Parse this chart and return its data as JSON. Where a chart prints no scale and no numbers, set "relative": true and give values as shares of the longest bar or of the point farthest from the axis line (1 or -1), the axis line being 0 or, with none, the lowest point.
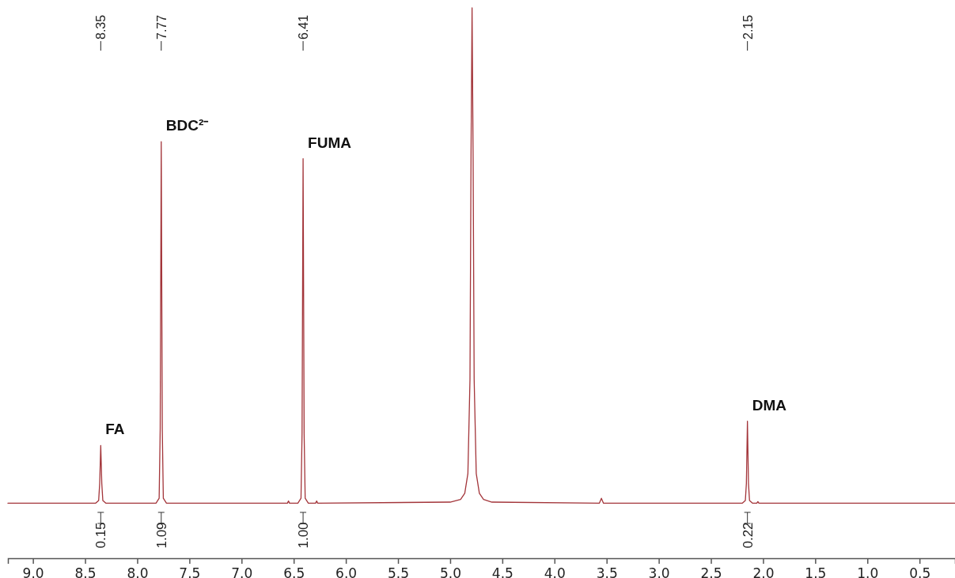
{
  "chart_data": {
    "type": "line",
    "relative": true,
    "xlim": [
      9.24,
      0.16
    ],
    "xticks": [
      {
        "value": 9,
        "label": "9.0"
      },
      {
        "value": 8.5,
        "label": "8.5"
      },
      {
        "value": 8,
        "label": "8.0"
      },
      {
        "value": 7.5,
        "label": "7.5"
      },
      {
        "value": 7,
        "label": "7.0"
      },
      {
        "value": 6.5,
        "label": "6.5"
      },
      {
        "value": 6,
        "label": "6.0"
      },
      {
        "value": 5.5,
        "label": "5.5"
      },
      {
        "value": 5,
        "label": "5.0"
      },
      {
        "value": 4.5,
        "label": "4.5"
      },
      {
        "value": 4,
        "label": "4.0"
      },
      {
        "value": 3.5,
        "label": "3.5"
      },
      {
        "value": 3,
        "label": "3.0"
      },
      {
        "value": 2.5,
        "label": "2.5"
      },
      {
        "value": 2,
        "label": "2.0"
      },
      {
        "value": 1.5,
        "label": "1.5"
      },
      {
        "value": 1,
        "label": "1.0"
      },
      {
        "value": 0.5,
        "label": "0.5"
      }
    ],
    "series": [
      {
        "color": "#a3353a",
        "x": [
          9.24,
          8.4,
          8.37,
          8.36,
          8.35,
          8.34,
          8.33,
          8.3,
          7.82,
          7.79,
          7.78,
          7.77,
          7.76,
          7.75,
          7.72,
          6.56,
          6.55,
          6.54,
          6.46,
          6.43,
          6.42,
          6.41,
          6.4,
          6.39,
          6.36,
          6.29,
          6.28,
          6.27,
          5.0,
          4.9,
          4.86,
          4.83,
          4.81,
          4.8,
          4.79,
          4.78,
          4.77,
          4.75,
          4.72,
          4.68,
          4.6,
          3.57,
          3.55,
          3.53,
          2.2,
          2.17,
          2.16,
          2.15,
          2.14,
          2.13,
          2.1,
          2.06,
          2.05,
          2.04,
          0.16
        ],
        "values": [
          0.1,
          0.1,
          0.105,
          0.136,
          0.205,
          0.136,
          0.105,
          0.1,
          0.1,
          0.109,
          0.235,
          0.757,
          0.235,
          0.109,
          0.1,
          0.1,
          0.104,
          0.1,
          0.1,
          0.109,
          0.226,
          0.726,
          0.226,
          0.109,
          0.1,
          0.1,
          0.104,
          0.1,
          0.102,
          0.107,
          0.118,
          0.154,
          0.325,
          0.73,
          1,
          0.73,
          0.325,
          0.154,
          0.118,
          0.107,
          0.102,
          0.1,
          0.109,
          0.1,
          0.1,
          0.105,
          0.136,
          0.249,
          0.136,
          0.105,
          0.1,
          0.1,
          0.103,
          0.1,
          0.1
        ]
      }
    ],
    "annotations": [
      {
        "text": "8.35",
        "x": 8.35
      },
      {
        "text": "7.77",
        "x": 7.77
      },
      {
        "text": "6.41",
        "x": 6.41
      },
      {
        "text": "2.15",
        "x": 2.15
      },
      {
        "text": "FA",
        "x": 8.35,
        "y": 0.205
      },
      {
        "text": "BDC²⁻",
        "x": 7.77,
        "y": 0.757
      },
      {
        "text": "FUMA",
        "x": 6.41,
        "y": 0.726
      },
      {
        "text": "DMA",
        "x": 2.15,
        "y": 0.249
      },
      {
        "text": "0.15",
        "x": 8.35
      },
      {
        "text": "1.09",
        "x": 7.77
      },
      {
        "text": "1.00",
        "x": 6.41
      },
      {
        "text": "0.22",
        "x": 2.15
      }
    ]
  }
}
